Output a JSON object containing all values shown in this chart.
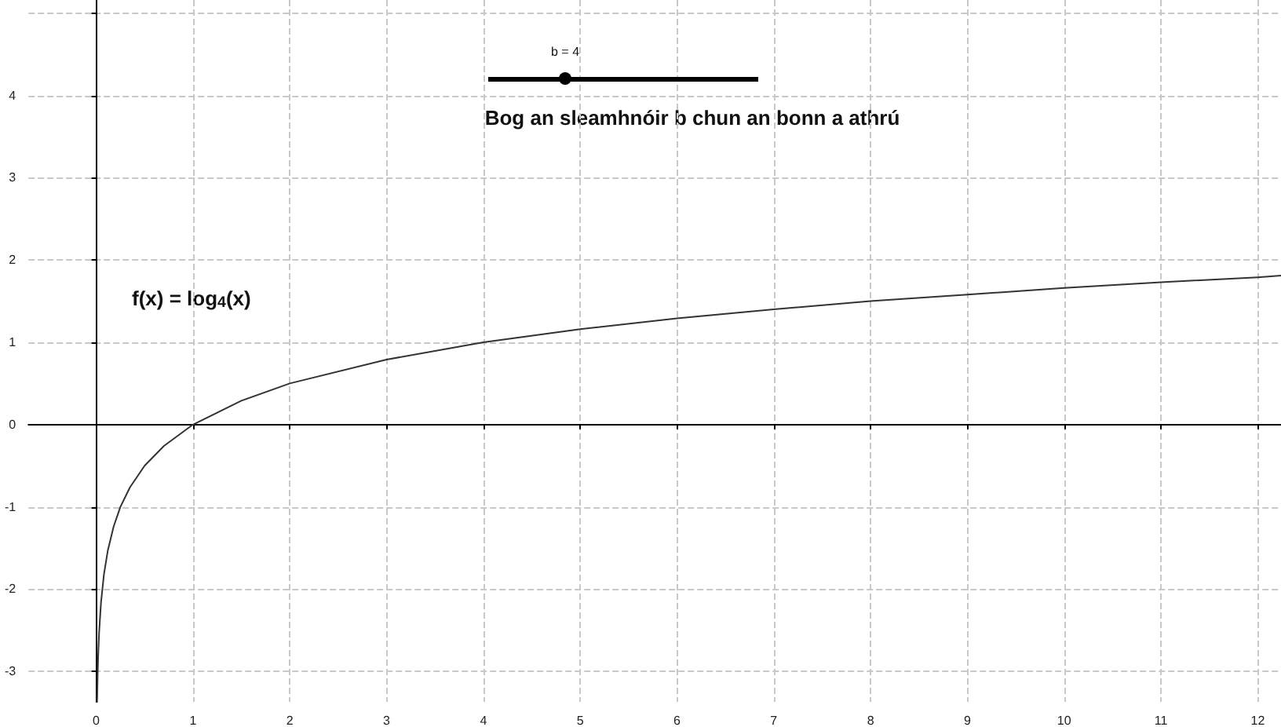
{
  "chart_data": {
    "type": "line",
    "xlim": [
      -0.7,
      12.24
    ],
    "ylim": [
      -3.37,
      5.16
    ],
    "xticks": [
      0,
      1,
      2,
      3,
      4,
      5,
      6,
      7,
      8,
      9,
      10,
      11,
      12
    ],
    "yticks": [
      -3,
      -2,
      -1,
      0,
      1,
      2,
      3,
      4,
      {
        "value": 5,
        "label": null
      }
    ],
    "grid": true,
    "marker": "none",
    "line_style": "solid",
    "annotations": [
      "f(x) = log$_{4}$(x)",
      "b = 4",
      "Bog an sleamhnóir b chun an bonn a athrú"
    ],
    "series": [
      {
        "color": "#333333",
        "x": [
          0.0094,
          0.015,
          0.02,
          0.03,
          0.05,
          0.08,
          0.12,
          0.18,
          0.25,
          0.35,
          0.5,
          0.7,
          1,
          1.5,
          2,
          3,
          4,
          5,
          6,
          7,
          8,
          9,
          10,
          11,
          12,
          12.24
        ],
        "values": [
          -3.37,
          -3.03,
          -2.82,
          -2.53,
          -2.16,
          -1.82,
          -1.53,
          -1.24,
          -1,
          -0.76,
          -0.5,
          -0.26,
          0,
          0.29,
          0.5,
          0.79,
          1,
          1.16,
          1.29,
          1.4,
          1.5,
          1.58,
          1.66,
          1.73,
          1.79,
          1.81
        ]
      }
    ]
  }
}
